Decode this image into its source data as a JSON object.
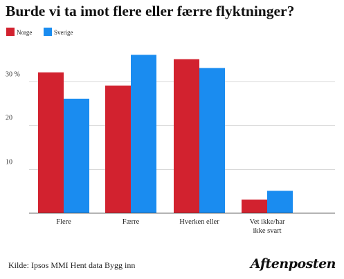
{
  "header": {
    "title": "Burde vi ta imot flere eller færre flyktninger?"
  },
  "legend": [
    {
      "label": "Norge",
      "color": "#d2222f"
    },
    {
      "label": "Sverige",
      "color": "#1a8cf0"
    }
  ],
  "chart_data": {
    "type": "bar",
    "categories": [
      "Flere",
      "Færre",
      "Hverken eller",
      [
        "Vet ikke/har",
        "ikke svart"
      ]
    ],
    "series": [
      {
        "name": "Norge",
        "color": "#d2222f",
        "values": [
          32,
          29,
          35,
          3
        ]
      },
      {
        "name": "Sverige",
        "color": "#1a8cf0",
        "values": [
          26,
          36,
          33,
          5
        ]
      }
    ],
    "y_ticks": [
      {
        "value": 10,
        "label": "10"
      },
      {
        "value": 20,
        "label": "20"
      },
      {
        "value": 30,
        "label": "30 %"
      }
    ],
    "ylim": [
      0,
      40
    ],
    "grid": true,
    "legend_position": "top-left"
  },
  "footer": {
    "source": "Kilde: Ipsos MMI Hent data  Bygg inn",
    "brand": "Aftenposten"
  }
}
